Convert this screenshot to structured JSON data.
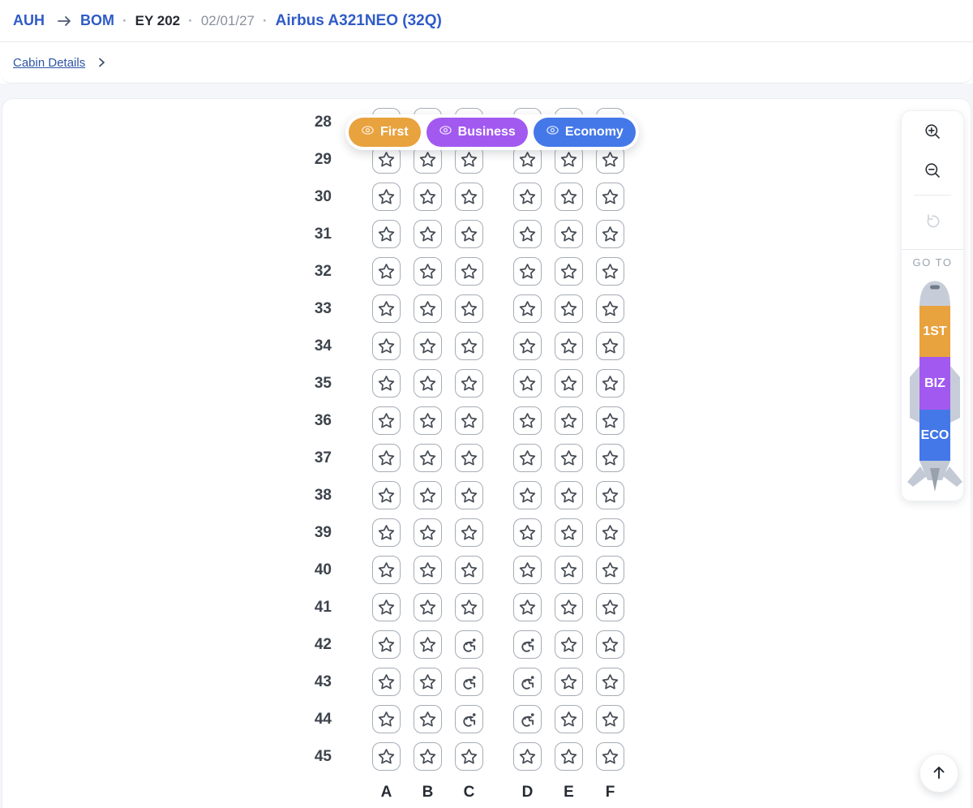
{
  "breadcrumb": {
    "origin": "AUH",
    "destination": "BOM",
    "separator": "·",
    "flight_number": "EY 202",
    "date": "02/01/27",
    "aircraft": "Airbus A321NEO (32Q)",
    "arrow_icon": "arrow-right-icon"
  },
  "subnav": {
    "cabin_details_label": "Cabin Details",
    "chevron_icon": "chevron-right-icon"
  },
  "legend": {
    "pills": [
      {
        "label": "First",
        "color": "#E8A23E",
        "icon": "eye-icon"
      },
      {
        "label": "Business",
        "color": "#A259F0",
        "icon": "eye-icon"
      },
      {
        "label": "Economy",
        "color": "#4478E8",
        "icon": "eye-icon"
      }
    ]
  },
  "seatmap": {
    "columns": [
      "A",
      "B",
      "C",
      "D",
      "E",
      "F"
    ],
    "seat_icons": {
      "available": "star-icon",
      "accessible": "wheelchair-icon"
    },
    "rows": [
      {
        "number": "28",
        "seats": [
          "available",
          "available",
          "available",
          "available",
          "available",
          "available"
        ]
      },
      {
        "number": "29",
        "seats": [
          "available",
          "available",
          "available",
          "available",
          "available",
          "available"
        ]
      },
      {
        "number": "30",
        "seats": [
          "available",
          "available",
          "available",
          "available",
          "available",
          "available"
        ]
      },
      {
        "number": "31",
        "seats": [
          "available",
          "available",
          "available",
          "available",
          "available",
          "available"
        ]
      },
      {
        "number": "32",
        "seats": [
          "available",
          "available",
          "available",
          "available",
          "available",
          "available"
        ]
      },
      {
        "number": "33",
        "seats": [
          "available",
          "available",
          "available",
          "available",
          "available",
          "available"
        ]
      },
      {
        "number": "34",
        "seats": [
          "available",
          "available",
          "available",
          "available",
          "available",
          "available"
        ]
      },
      {
        "number": "35",
        "seats": [
          "available",
          "available",
          "available",
          "available",
          "available",
          "available"
        ]
      },
      {
        "number": "36",
        "seats": [
          "available",
          "available",
          "available",
          "available",
          "available",
          "available"
        ]
      },
      {
        "number": "37",
        "seats": [
          "available",
          "available",
          "available",
          "available",
          "available",
          "available"
        ]
      },
      {
        "number": "38",
        "seats": [
          "available",
          "available",
          "available",
          "available",
          "available",
          "available"
        ]
      },
      {
        "number": "39",
        "seats": [
          "available",
          "available",
          "available",
          "available",
          "available",
          "available"
        ]
      },
      {
        "number": "40",
        "seats": [
          "available",
          "available",
          "available",
          "available",
          "available",
          "available"
        ]
      },
      {
        "number": "41",
        "seats": [
          "available",
          "available",
          "available",
          "available",
          "available",
          "available"
        ]
      },
      {
        "number": "42",
        "seats": [
          "available",
          "available",
          "accessible",
          "accessible",
          "available",
          "available"
        ]
      },
      {
        "number": "43",
        "seats": [
          "available",
          "available",
          "accessible",
          "accessible",
          "available",
          "available"
        ]
      },
      {
        "number": "44",
        "seats": [
          "available",
          "available",
          "accessible",
          "accessible",
          "available",
          "available"
        ]
      },
      {
        "number": "45",
        "seats": [
          "available",
          "available",
          "available",
          "available",
          "available",
          "available"
        ]
      }
    ]
  },
  "side_panel": {
    "goto_label": "GO TO",
    "icons": {
      "zoom_in": "magnifier-plus-icon",
      "zoom_out": "magnifier-minus-icon",
      "reset": "rotate-ccw-icon"
    },
    "plane_sections": [
      {
        "label": "1ST",
        "color": "#E8A23E"
      },
      {
        "label": "BIZ",
        "color": "#A259F0"
      },
      {
        "label": "ECO",
        "color": "#4478E8"
      }
    ]
  },
  "scroll_top": {
    "icon": "arrow-up-icon"
  }
}
